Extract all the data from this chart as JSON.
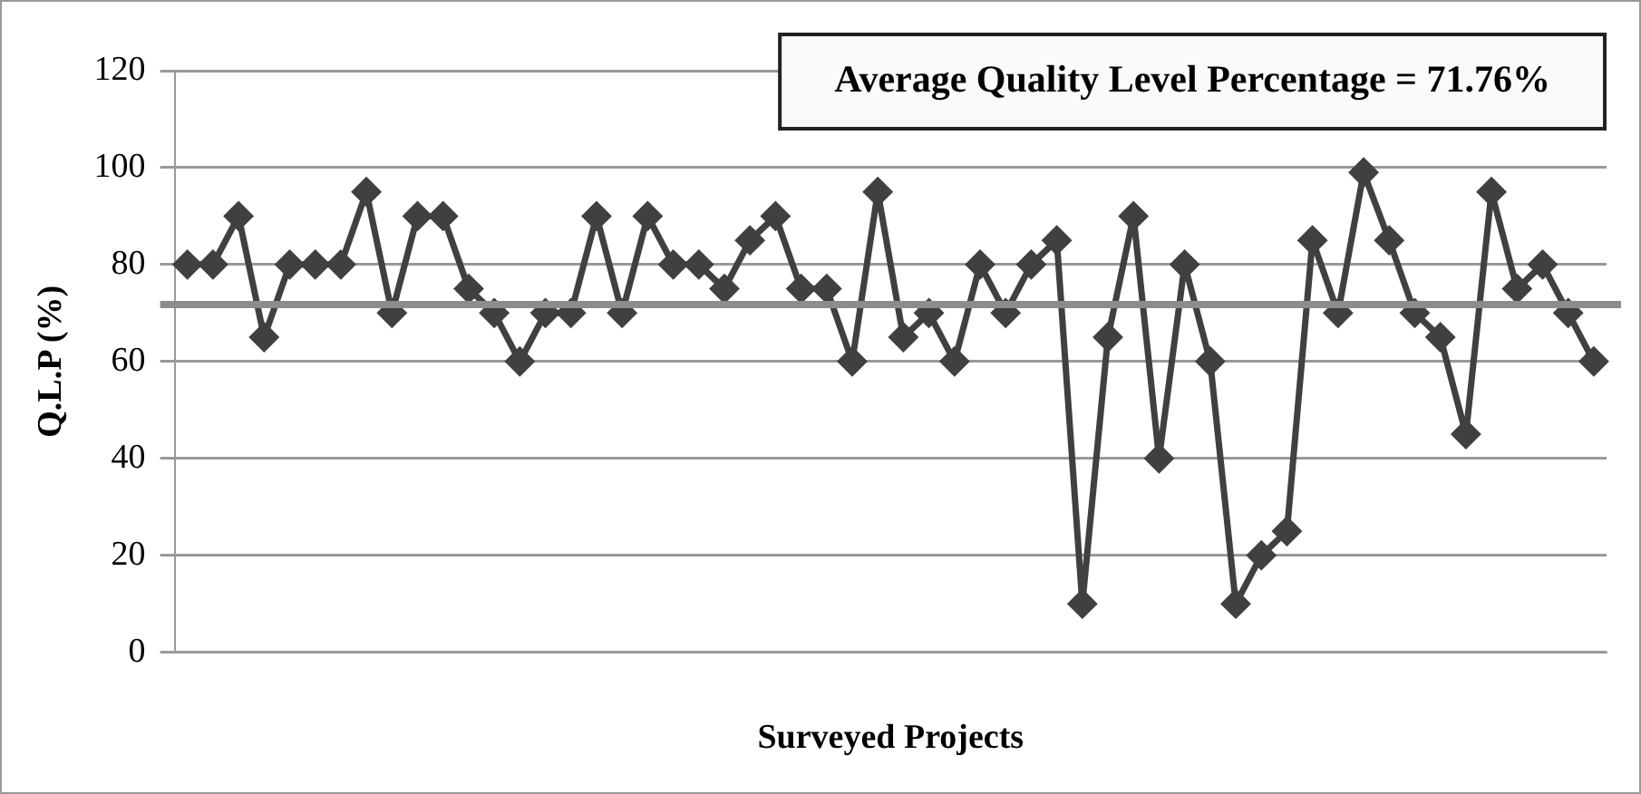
{
  "chart_data": {
    "type": "line",
    "xlabel": "Surveyed Projects",
    "ylabel": "Q.L.P (%)",
    "categories": [
      null,
      null,
      null,
      null,
      null,
      null,
      null,
      null,
      null,
      null,
      null,
      null,
      null,
      null,
      null,
      null,
      null,
      null,
      null,
      null,
      null,
      null,
      null,
      null,
      null,
      null,
      null,
      null,
      null,
      null,
      null,
      null,
      null,
      null,
      null,
      null,
      null,
      null,
      null,
      null,
      null,
      null,
      null,
      null,
      null,
      null,
      null,
      null,
      null,
      null,
      null,
      null,
      null,
      null,
      null,
      null
    ],
    "series": [
      {
        "color": "#404040",
        "values": [
          80,
          80,
          90,
          65,
          80,
          80,
          80,
          95,
          70,
          90,
          90,
          75,
          70,
          60,
          70,
          70,
          90,
          70,
          90,
          80,
          80,
          75,
          85,
          90,
          75,
          75,
          60,
          95,
          65,
          70,
          60,
          80,
          70,
          80,
          85,
          10,
          65,
          90,
          40,
          80,
          60,
          10,
          20,
          25,
          85,
          70,
          99,
          85,
          70,
          65,
          45,
          95,
          75,
          80,
          70,
          60
        ]
      }
    ],
    "ylim": [
      0,
      120
    ],
    "yticks": [
      0,
      20,
      40,
      60,
      80,
      100,
      120
    ],
    "grid": "y",
    "marker": "diamond",
    "line_style": "solid",
    "annotations": [
      "Average Quality Level Percentage = 71.76%"
    ],
    "ref_lines": [
      {
        "axis": "y",
        "value": 71.76,
        "color": "#8c8c8c"
      }
    ]
  }
}
